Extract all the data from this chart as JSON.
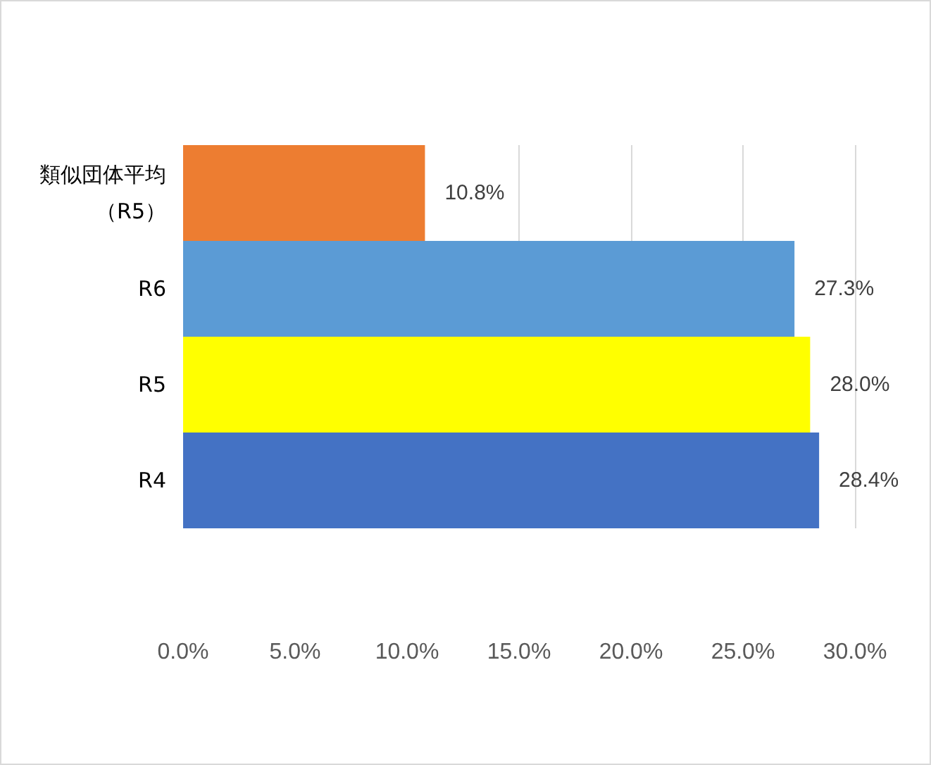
{
  "chart_data": {
    "type": "bar",
    "orientation": "horizontal",
    "categories": [
      "類似団体平均（R5）",
      "R6",
      "R5",
      "R4"
    ],
    "values": [
      10.8,
      27.3,
      28.0,
      28.4
    ],
    "colors": [
      "#ed7d31",
      "#5b9bd5",
      "#ffff00",
      "#4472c4"
    ],
    "value_labels": [
      "10.8%",
      "27.3%",
      "28.0%",
      "28.4%"
    ],
    "xlim": [
      0,
      30
    ],
    "xticks": [
      {
        "value": 0,
        "label": "0.0%"
      },
      {
        "value": 5,
        "label": "5.0%"
      },
      {
        "value": 10,
        "label": "10.0%"
      },
      {
        "value": 15,
        "label": "15.0%"
      },
      {
        "value": 20,
        "label": "20.0%"
      },
      {
        "value": 25,
        "label": "25.0%"
      },
      {
        "value": 30,
        "label": "30.0%"
      }
    ],
    "grid": "x"
  }
}
